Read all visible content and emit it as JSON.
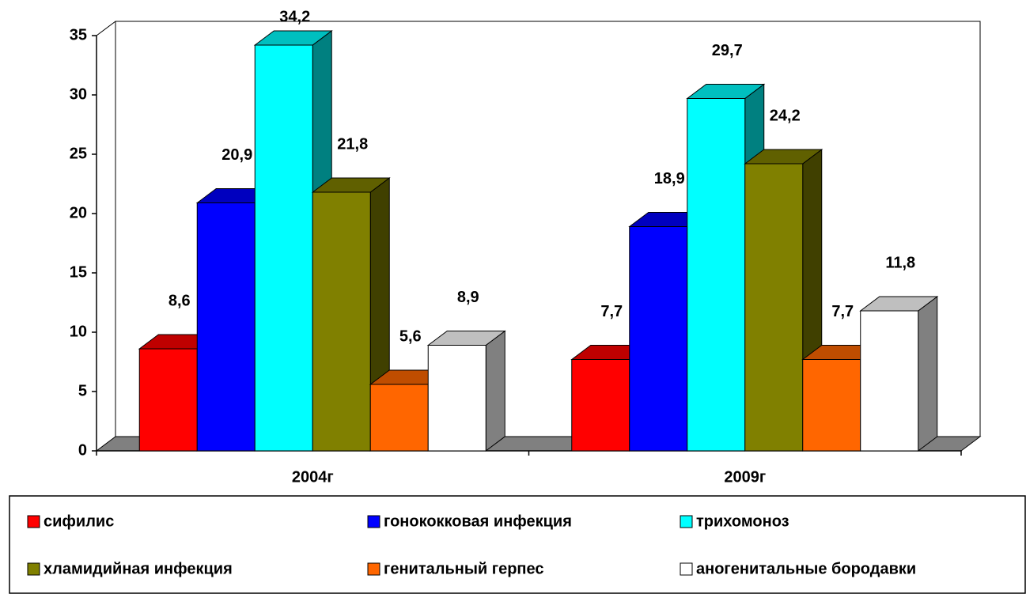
{
  "chart_data": {
    "type": "bar3d",
    "categories": [
      "2004г",
      "2009г"
    ],
    "series": [
      {
        "name": "сифилис",
        "color": "#ff0000",
        "values": [
          8.6,
          7.7
        ],
        "value_labels": [
          "8,6",
          "7,7"
        ]
      },
      {
        "name": "гонококковая инфекция",
        "color": "#0000ff",
        "values": [
          20.9,
          18.9
        ],
        "value_labels": [
          "20,9",
          "18,9"
        ]
      },
      {
        "name": "трихомоноз",
        "color": "#00ffff",
        "values": [
          34.2,
          29.7
        ],
        "value_labels": [
          "34,2",
          "29,7"
        ]
      },
      {
        "name": "хламидийная инфекция",
        "color": "#808000",
        "values": [
          21.8,
          24.2
        ],
        "value_labels": [
          "21,8",
          "24,2"
        ]
      },
      {
        "name": "генитальный герпес",
        "color": "#ff6600",
        "values": [
          5.6,
          7.7
        ],
        "value_labels": [
          "5,6",
          "7,7"
        ]
      },
      {
        "name": "аногенитальные бородавки",
        "color": "#ffffff",
        "values": [
          8.9,
          11.8
        ],
        "value_labels": [
          "8,9",
          "11,8"
        ]
      }
    ],
    "ylim": [
      0,
      35
    ],
    "yticks": [
      0,
      5,
      10,
      15,
      20,
      25,
      30,
      35
    ],
    "legend": "bottom"
  }
}
